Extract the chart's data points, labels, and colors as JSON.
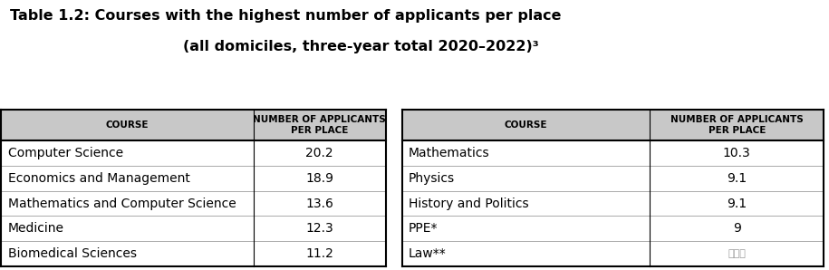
{
  "title_line1": "Table 1.2: Courses with the highest number of applicants per place",
  "title_line2": "(all domiciles, three-year total 2020–2022)³",
  "header_col1": "COURSE",
  "header_col2": "NUMBER OF APPLICANTS\nPER PLACE",
  "left_courses": [
    "Computer Science",
    "Economics and Management",
    "Mathematics and Computer Science",
    "Medicine",
    "Biomedical Sciences"
  ],
  "left_values": [
    "20.2",
    "18.9",
    "13.6",
    "12.3",
    "11.2"
  ],
  "right_courses": [
    "Mathematics",
    "Physics",
    "History and Politics",
    "PPE*",
    "Law**"
  ],
  "right_values": [
    "10.3",
    "9.1",
    "9.1",
    "9",
    ""
  ],
  "header_bg": "#c8c8c8",
  "sep_line_color": "#aaaaaa",
  "title_fontsize": 11.5,
  "header_fontsize": 7.5,
  "cell_fontsize": 10,
  "background_color": "#ffffff"
}
